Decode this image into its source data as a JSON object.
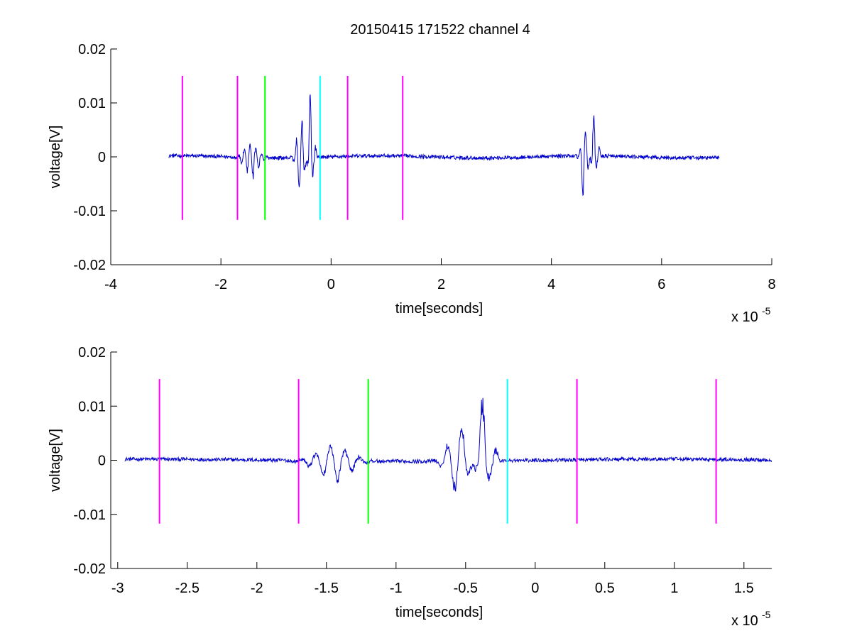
{
  "figure": {
    "title": "20150415 171522 channel 4"
  },
  "chart_data": [
    {
      "type": "line",
      "title": "20150415 171522 channel 4",
      "xlabel": "time[seconds]",
      "ylabel": "voltage[V]",
      "x_multiplier": "x 10",
      "x_exponent": "-5",
      "xlim": [
        -4,
        8
      ],
      "ylim": [
        -0.02,
        0.02
      ],
      "x_ticks": [
        -4,
        -2,
        0,
        2,
        4,
        6,
        8
      ],
      "x_tick_labels": [
        "-4",
        "-2",
        "0",
        "2",
        "4",
        "6",
        "8"
      ],
      "y_ticks": [
        -0.02,
        -0.01,
        0,
        0.01,
        0.02
      ],
      "y_tick_labels": [
        "-0.02",
        "-0.01",
        "0",
        "0.01",
        "0.02"
      ],
      "grid": false,
      "signal": {
        "color": "#0000cc",
        "x_range": [
          -2.95,
          7.05
        ],
        "bursts": [
          {
            "x": -1.45,
            "width": 0.35,
            "amp_pos": 0.003,
            "amp_neg": -0.0045
          },
          {
            "x": -0.55,
            "width": 0.2,
            "amp_pos": 0.008,
            "amp_neg": -0.0073
          },
          {
            "x": -0.37,
            "width": 0.15,
            "amp_pos": 0.0138,
            "amp_neg": -0.006
          },
          {
            "x": 4.6,
            "width": 0.15,
            "amp_pos": 0.006,
            "amp_neg": -0.0105
          },
          {
            "x": 4.78,
            "width": 0.15,
            "amp_pos": 0.0105,
            "amp_neg": -0.0035
          }
        ]
      },
      "markers": [
        {
          "x": -2.7,
          "color": "#ff00ff",
          "y_range": [
            -0.0117,
            0.015
          ]
        },
        {
          "x": -1.7,
          "color": "#ff00ff",
          "y_range": [
            -0.0117,
            0.015
          ]
        },
        {
          "x": -1.2,
          "color": "#00ff00",
          "y_range": [
            -0.0117,
            0.015
          ]
        },
        {
          "x": -0.2,
          "color": "#00ffff",
          "y_range": [
            -0.0117,
            0.015
          ]
        },
        {
          "x": 0.3,
          "color": "#ff00ff",
          "y_range": [
            -0.0117,
            0.015
          ]
        },
        {
          "x": 1.3,
          "color": "#ff00ff",
          "y_range": [
            -0.0117,
            0.015
          ]
        }
      ]
    },
    {
      "type": "line",
      "xlabel": "time[seconds]",
      "ylabel": "voltage[V]",
      "x_multiplier": "x 10",
      "x_exponent": "-5",
      "xlim": [
        -3.05,
        1.7
      ],
      "ylim": [
        -0.02,
        0.02
      ],
      "x_ticks": [
        -3,
        -2.5,
        -2,
        -1.5,
        -1,
        -0.5,
        0,
        0.5,
        1,
        1.5
      ],
      "x_tick_labels": [
        "-3",
        "-2.5",
        "-2",
        "-1.5",
        "-1",
        "-0.5",
        "0",
        "0.5",
        "1",
        "1.5"
      ],
      "y_ticks": [
        -0.02,
        -0.01,
        0,
        0.01,
        0.02
      ],
      "y_tick_labels": [
        "-0.02",
        "-0.01",
        "0",
        "0.01",
        "0.02"
      ],
      "grid": false,
      "signal": {
        "color": "#0000cc",
        "x_range": [
          -2.95,
          1.7
        ],
        "bursts": [
          {
            "x": -1.45,
            "width": 0.35,
            "amp_pos": 0.003,
            "amp_neg": -0.0045
          },
          {
            "x": -0.55,
            "width": 0.2,
            "amp_pos": 0.008,
            "amp_neg": -0.0073
          },
          {
            "x": -0.37,
            "width": 0.15,
            "amp_pos": 0.0138,
            "amp_neg": -0.006
          }
        ]
      },
      "markers": [
        {
          "x": -2.7,
          "color": "#ff00ff",
          "y_range": [
            -0.0117,
            0.015
          ]
        },
        {
          "x": -1.7,
          "color": "#ff00ff",
          "y_range": [
            -0.0117,
            0.015
          ]
        },
        {
          "x": -1.2,
          "color": "#00ff00",
          "y_range": [
            -0.0117,
            0.015
          ]
        },
        {
          "x": -0.2,
          "color": "#00ffff",
          "y_range": [
            -0.0117,
            0.015
          ]
        },
        {
          "x": 0.3,
          "color": "#ff00ff",
          "y_range": [
            -0.0117,
            0.015
          ]
        },
        {
          "x": 1.3,
          "color": "#ff00ff",
          "y_range": [
            -0.0117,
            0.015
          ]
        }
      ]
    }
  ]
}
